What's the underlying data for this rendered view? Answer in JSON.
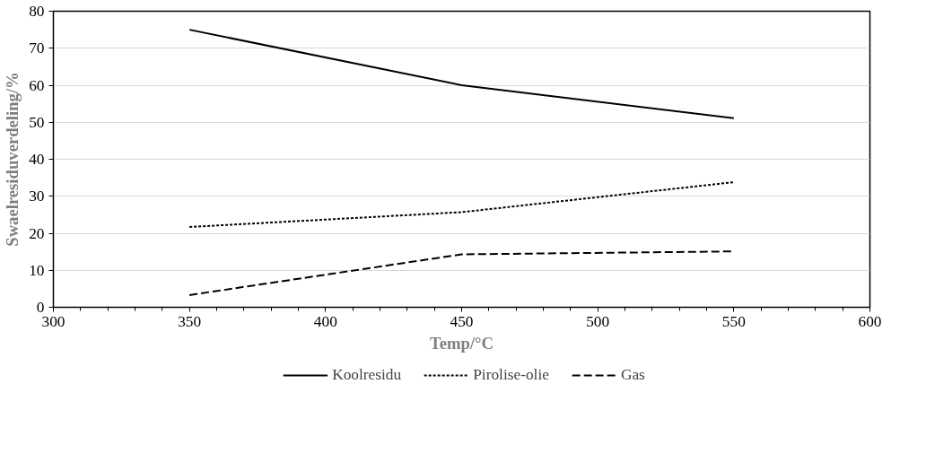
{
  "chart_data": {
    "type": "line",
    "xlabel": "Temp/°C",
    "ylabel": "Swaelresiduverdeling/%",
    "x": [
      350,
      450,
      550
    ],
    "series": [
      {
        "name": "Koolresidu",
        "color": "#000000",
        "values": [
          75,
          60,
          51.1
        ],
        "line_style": "solid"
      },
      {
        "name": "Pirolise-olie",
        "color": "#000000",
        "values": [
          21.7,
          25.7,
          33.8
        ],
        "line_style": "dotted"
      },
      {
        "name": "Gas",
        "color": "#000000",
        "values": [
          3.3,
          14.3,
          15.1
        ],
        "line_style": "dashed"
      }
    ],
    "xlim": [
      300,
      600
    ],
    "xticks": [
      300,
      350,
      400,
      450,
      500,
      550,
      600
    ],
    "ylim": [
      0,
      80
    ],
    "yticks": [
      0,
      10,
      20,
      30,
      40,
      50,
      60,
      70,
      80
    ],
    "grid": "y",
    "legend": "bottom",
    "marker": "none"
  }
}
